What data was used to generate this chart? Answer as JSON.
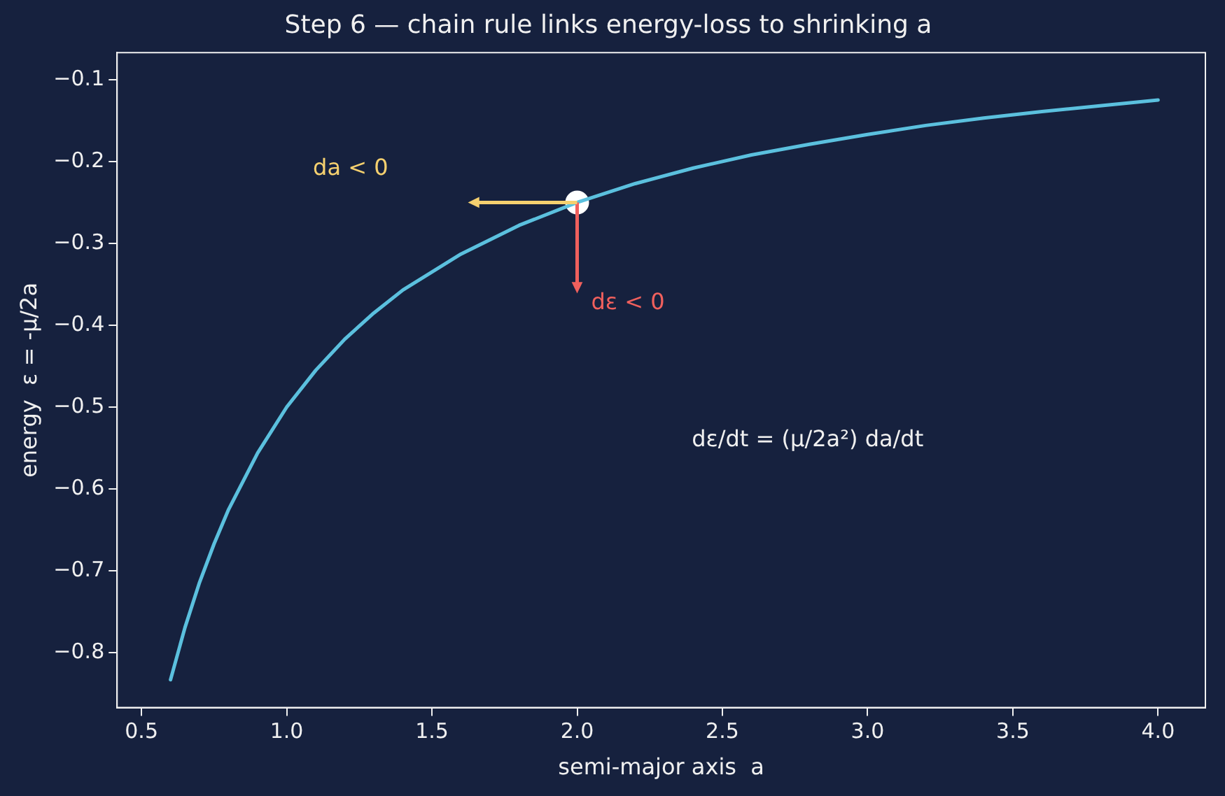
{
  "chart_data": {
    "type": "line",
    "title": "Step 6 — chain rule links energy-loss to shrinking a",
    "xlabel": "semi-major axis  a",
    "ylabel": "energy  ε = -μ/2a",
    "xlim": [
      0.416,
      4.163
    ],
    "ylim": [
      -0.867,
      -0.067
    ],
    "xticks": [
      0.5,
      {
        "value": 1,
        "label": "1.0"
      },
      1.5,
      {
        "value": 2,
        "label": "2.0"
      },
      2.5,
      {
        "value": 3,
        "label": "3.0"
      },
      3.5,
      {
        "value": 4,
        "label": "4.0"
      }
    ],
    "yticks": [
      {
        "value": -0.8,
        "label": "−0.8"
      },
      {
        "value": -0.7,
        "label": "−0.7"
      },
      {
        "value": -0.6,
        "label": "−0.6"
      },
      {
        "value": -0.5,
        "label": "−0.5"
      },
      {
        "value": -0.4,
        "label": "−0.4"
      },
      {
        "value": -0.3,
        "label": "−0.3"
      },
      {
        "value": -0.2,
        "label": "−0.2"
      },
      {
        "value": -0.1,
        "label": "−0.1"
      }
    ],
    "grid": false,
    "legend": false,
    "series": [
      {
        "color": "#5bc0de",
        "x": [
          0.6,
          0.65,
          0.7,
          0.75,
          0.8,
          0.9,
          1.0,
          1.1,
          1.2,
          1.3,
          1.4,
          1.6,
          1.8,
          2.0,
          2.2,
          2.4,
          2.6,
          2.8,
          3.0,
          3.2,
          3.4,
          3.6,
          3.8,
          4.0
        ],
        "values": [
          -0.833,
          -0.769,
          -0.714,
          -0.667,
          -0.625,
          -0.556,
          -0.5,
          -0.455,
          -0.417,
          -0.385,
          -0.357,
          -0.313,
          -0.278,
          -0.25,
          -0.227,
          -0.208,
          -0.192,
          -0.179,
          -0.167,
          -0.156,
          -0.147,
          -0.139,
          -0.132,
          -0.125
        ]
      },
      {
        "type": "scatter",
        "color": "#ffffff",
        "marker": "circle",
        "x": [
          2.0
        ],
        "values": [
          -0.25
        ]
      }
    ],
    "annotations": [
      "da < 0",
      {
        "text": "dε < 0",
        "x": 2.0,
        "y": -0.25
      },
      "dε/dt = (μ/2a²) da/dt"
    ]
  }
}
